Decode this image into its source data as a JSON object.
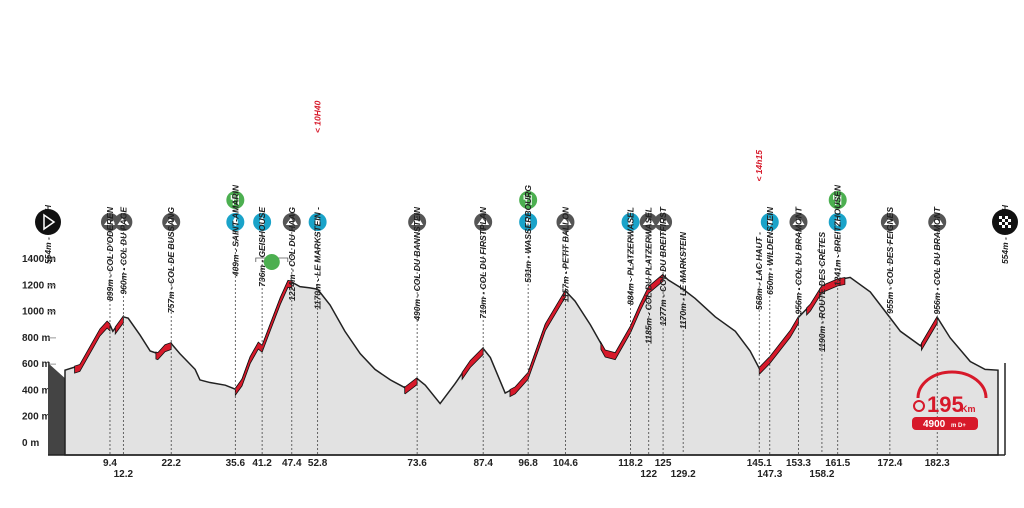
{
  "chart_data": {
    "type": "profile",
    "x": [
      0,
      3.1,
      7.3,
      8.8,
      9.4,
      10,
      12.2,
      13.2,
      15.7,
      17.8,
      19.4,
      20.9,
      22.2,
      24,
      27.2,
      28.2,
      30.3,
      33.5,
      35.6,
      37,
      38.7,
      40.4,
      41.2,
      42.9,
      45,
      46.6,
      47.4,
      49.1,
      51.2,
      52.8,
      55.4,
      58.5,
      61.7,
      64.8,
      68,
      71.1,
      73.6,
      75.3,
      78.4,
      81.5,
      84.7,
      87.4,
      88.9,
      92,
      94.1,
      96.8,
      100.4,
      104.6,
      106.6,
      109.8,
      112.9,
      115,
      118.2,
      120.2,
      122,
      125,
      126.1,
      129.2,
      131.7,
      135.9,
      140.1,
      143.2,
      145.1,
      147.3,
      151.6,
      153.3,
      155.8,
      158.2,
      161.5,
      164.1,
      168.3,
      172.4,
      174.6,
      178.8,
      182.3,
      185,
      189.2,
      192.3,
      195
    ],
    "values": [
      554,
      590,
      860,
      920,
      899,
      850,
      960,
      950,
      820,
      700,
      680,
      740,
      757,
      680,
      560,
      480,
      460,
      440,
      409,
      480,
      650,
      760,
      736,
      900,
      1100,
      1230,
      1224,
      1190,
      1180,
      1170,
      1050,
      850,
      680,
      560,
      480,
      420,
      490,
      440,
      300,
      450,
      620,
      719,
      650,
      380,
      420,
      531,
      900,
      1157,
      1080,
      900,
      700,
      680,
      884,
      1050,
      1185,
      1277,
      1240,
      1170,
      1100,
      960,
      850,
      700,
      568,
      650,
      850,
      956,
      1050,
      1190,
      1241,
      1260,
      1150,
      955,
      850,
      740,
      956,
      800,
      620,
      560,
      554
    ],
    "climbs": [
      [
        2,
        9.4
      ],
      [
        10.5,
        12.2
      ],
      [
        19,
        22.2
      ],
      [
        35.6,
        47.4
      ],
      [
        71,
        73.6
      ],
      [
        83,
        87.4
      ],
      [
        93,
        104.6
      ],
      [
        112,
        125
      ],
      [
        145.1,
        153.3
      ],
      [
        155,
        163
      ],
      [
        179,
        182.3
      ]
    ],
    "color": "#d7192a",
    "xlim": [
      0,
      195
    ],
    "ylim": [
      0,
      1400
    ],
    "yticks": [
      {
        "value": 0,
        "label": "0 m"
      },
      {
        "value": 200,
        "label": "200 m"
      },
      {
        "value": 400,
        "label": "400 m"
      },
      {
        "value": 600,
        "label": "600 m"
      },
      {
        "value": 800,
        "label": "800 m"
      },
      {
        "value": 1000,
        "label": "1000 m"
      },
      {
        "value": 1200,
        "label": "1200 m"
      },
      {
        "value": 1400,
        "label": "1400 m"
      }
    ],
    "start": {
      "label": "554m - KRUTH"
    },
    "finish": {
      "label": "554m - KRUTH"
    },
    "waypoints": [
      {
        "label": "899m - COL D'ODEREN",
        "km": 9.4,
        "icons": [
          "mountain"
        ]
      },
      {
        "label": "960m - COL DU PAGE",
        "km": 12.2,
        "icons": [
          "mountain"
        ]
      },
      {
        "label": "757m - COL DE BUSSANG",
        "km": 22.2,
        "icons": [
          "mountain"
        ]
      },
      {
        "label": "409m - SAINT-AMARIN",
        "km": 35.6,
        "icons": [
          "food",
          "water"
        ]
      },
      {
        "label": "736m - GEISHOUSE",
        "km": 41.2,
        "icons": [
          "water"
        ]
      },
      {
        "label": "1224m - COL DU HAAG",
        "km": 47.4,
        "icons": [
          "mountain"
        ]
      },
      {
        "label": "1170m - LE MARKSTEIN -",
        "km": 52.8,
        "icons": [
          "water"
        ],
        "cutoff": "< 10H40"
      },
      {
        "label": "490m - COL DU BANNSTEIN",
        "km": 73.6,
        "icons": [
          "mountain"
        ]
      },
      {
        "label": "719m - COL DU FIRSTPLAN",
        "km": 87.4,
        "icons": [
          "mountain"
        ]
      },
      {
        "label": "531m - WASSERBOURG",
        "km": 96.8,
        "icons": [
          "food",
          "water"
        ]
      },
      {
        "label": "1157m - PETIT BALLON",
        "km": 104.6,
        "icons": [
          "mountain"
        ]
      },
      {
        "label": "884m - PLATZERWASEL",
        "km": 118.2,
        "icons": [
          "water"
        ]
      },
      {
        "label": "1185m - COL DU PLATZERWASEL",
        "km": 122,
        "icons": [
          "mountain"
        ]
      },
      {
        "label": "1277m - COL DU BREITFIRST",
        "km": 125,
        "icons": [
          "mountain"
        ]
      },
      {
        "label": "1170m - LE MARKSTEIN",
        "km": 129.2,
        "icons": []
      },
      {
        "label": "568m - LAC HAUT -",
        "km": 145.1,
        "icons": [],
        "cutoff": "< 14h15"
      },
      {
        "label": "650m - WILDENSTEIN",
        "km": 147.3,
        "icons": [
          "water"
        ]
      },
      {
        "label": "956m - COL DU BRAMONT",
        "km": 153.3,
        "icons": [
          "mountain"
        ]
      },
      {
        "label": "1190m - ROUTE DES CRÊTES",
        "km": 158.2,
        "icons": []
      },
      {
        "label": "1241m - BREITZHOUSEN",
        "km": 161.5,
        "icons": [
          "food",
          "water"
        ]
      },
      {
        "label": "955m - COL DES FEIGNES",
        "km": 172.4,
        "icons": [
          "mountain"
        ]
      },
      {
        "label": "956m - COL DU BRAMONT",
        "km": 182.3,
        "icons": [
          "mountain"
        ]
      }
    ],
    "badge": {
      "distance": "195",
      "distance_unit": "Km",
      "elevation": "4900",
      "elevation_unit": "m D+"
    }
  }
}
